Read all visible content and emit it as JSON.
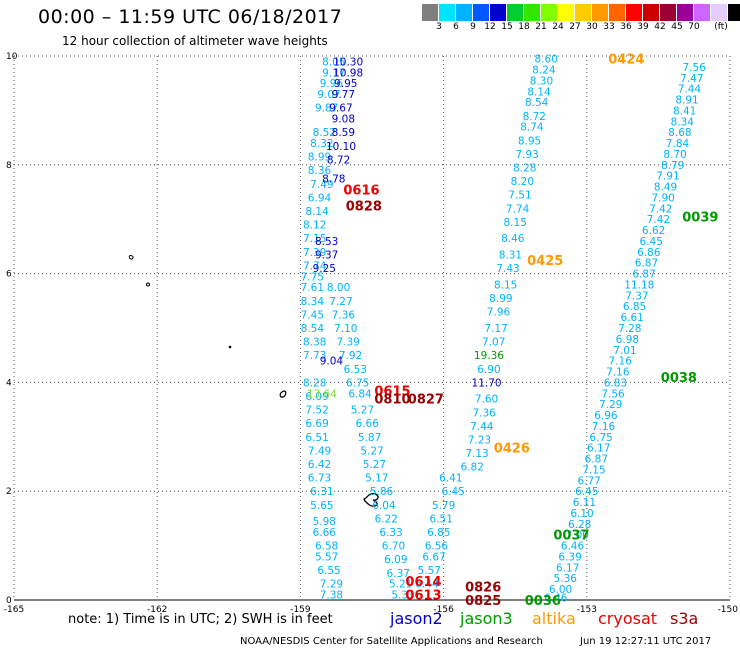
{
  "title": "00:00 – 11:59 UTC 06/18/2017",
  "subtitle": "12 hour collection of altimeter wave heights",
  "colorbar": {
    "colors": [
      "#7f7f7f",
      "#00e5ff",
      "#00b3ff",
      "#0059ff",
      "#0000cc",
      "#00cc33",
      "#33e500",
      "#7fff00",
      "#ffff00",
      "#ffcc00",
      "#ff9900",
      "#ff6600",
      "#ff0000",
      "#cc0000",
      "#990033",
      "#990099",
      "#cc66ff",
      "#e5ccff",
      "#000000"
    ],
    "labels": [
      "3",
      "6",
      "9",
      "12",
      "15",
      "18",
      "21",
      "24",
      "27",
      "30",
      "33",
      "36",
      "39",
      "42",
      "45",
      "70",
      "(ft)"
    ]
  },
  "axes": {
    "x_ticks": [
      "-165",
      "-162",
      "-159",
      "-156",
      "-153",
      "-150"
    ],
    "y_ticks": [
      "0",
      "2",
      "4",
      "6",
      "8",
      "10"
    ]
  },
  "footnote": "note:  1) Time is in UTC;  2) SWH is in feet",
  "satellites": [
    {
      "name": "jason2",
      "color": "#0000cc"
    },
    {
      "name": "jason3",
      "color": "#009900"
    },
    {
      "name": "altika",
      "color": "#ff9900"
    },
    {
      "name": "cryosat",
      "color": "#ee0000"
    },
    {
      "name": "s3a",
      "color": "#990000"
    }
  ],
  "credit": "NOAA/NESDIS Center for Satellite Applications and Research",
  "timestamp": "Jun 19 12:27:11 UTC 2017",
  "time_labels": [
    {
      "text": "0424",
      "color": "#ff9900",
      "lon": -152.55,
      "lat": 9.95
    },
    {
      "text": "0425",
      "color": "#ff9900",
      "lon": -154.25,
      "lat": 6.25
    },
    {
      "text": "0426",
      "color": "#ff9900",
      "lon": -154.95,
      "lat": 2.8
    },
    {
      "text": "0616",
      "color": "#ee0000",
      "lon": -158.1,
      "lat": 7.55
    },
    {
      "text": "0828",
      "color": "#990000",
      "lon": -158.05,
      "lat": 7.25
    },
    {
      "text": "0039",
      "color": "#009900",
      "lon": -151.0,
      "lat": 7.05
    },
    {
      "text": "0038",
      "color": "#009900",
      "lon": -151.45,
      "lat": 4.1
    },
    {
      "text": "0037",
      "color": "#009900",
      "lon": -153.7,
      "lat": 1.2
    },
    {
      "text": "0036",
      "color": "#009900",
      "lon": -154.3,
      "lat": 0.0
    },
    {
      "text": "0615",
      "color": "#ee0000",
      "lon": -157.45,
      "lat": 3.85
    },
    {
      "text": "0810",
      "color": "#990000",
      "lon": -157.45,
      "lat": 3.7
    },
    {
      "text": "0827",
      "color": "#990000",
      "lon": -156.75,
      "lat": 3.7
    },
    {
      "text": "0614",
      "color": "#ee0000",
      "lon": -156.8,
      "lat": 0.35
    },
    {
      "text": "0613",
      "color": "#ee0000",
      "lon": -156.8,
      "lat": 0.1
    },
    {
      "text": "0826",
      "color": "#990000",
      "lon": -155.55,
      "lat": 0.25
    },
    {
      "text": "0825",
      "color": "#990000",
      "lon": -155.55,
      "lat": 0.0
    }
  ],
  "tracks": [
    {
      "satellite": "altika",
      "color": "#00b3ff",
      "points": [
        {
          "lon": -153.85,
          "lat": 9.95,
          "v": "8.60"
        },
        {
          "lon": -153.9,
          "lat": 9.75,
          "v": "8.24"
        },
        {
          "lon": -153.95,
          "lat": 9.55,
          "v": "8.30"
        },
        {
          "lon": -154.0,
          "lat": 9.35,
          "v": "8.14"
        },
        {
          "lon": -154.05,
          "lat": 9.15,
          "v": "8.54"
        },
        {
          "lon": -154.1,
          "lat": 8.9,
          "v": "8.72"
        },
        {
          "lon": -154.15,
          "lat": 8.7,
          "v": "8.74"
        },
        {
          "lon": -154.2,
          "lat": 8.45,
          "v": "8.95"
        },
        {
          "lon": -154.25,
          "lat": 8.2,
          "v": "7.93"
        },
        {
          "lon": -154.3,
          "lat": 7.95,
          "v": "8.28"
        },
        {
          "lon": -154.35,
          "lat": 7.7,
          "v": "8.20"
        },
        {
          "lon": -154.4,
          "lat": 7.45,
          "v": "7.51"
        },
        {
          "lon": -154.45,
          "lat": 7.2,
          "v": "7.74"
        },
        {
          "lon": -154.5,
          "lat": 6.95,
          "v": "8.15"
        },
        {
          "lon": -154.55,
          "lat": 6.65,
          "v": "8.46"
        },
        {
          "lon": -154.6,
          "lat": 6.35,
          "v": "8.31"
        },
        {
          "lon": -154.65,
          "lat": 6.1,
          "v": "7.43"
        },
        {
          "lon": -154.7,
          "lat": 5.8,
          "v": "8.15"
        },
        {
          "lon": -154.8,
          "lat": 5.55,
          "v": "8.99"
        },
        {
          "lon": -154.85,
          "lat": 5.3,
          "v": "7.96"
        },
        {
          "lon": -154.9,
          "lat": 5.0,
          "v": "7.17"
        },
        {
          "lon": -154.95,
          "lat": 4.75,
          "v": "7.07"
        },
        {
          "lon": -155.05,
          "lat": 4.25,
          "v": "6.90"
        },
        {
          "lon": -155.1,
          "lat": 3.7,
          "v": "7.60"
        },
        {
          "lon": -155.15,
          "lat": 3.45,
          "v": "7.36"
        },
        {
          "lon": -155.2,
          "lat": 3.2,
          "v": "7.44"
        },
        {
          "lon": -155.25,
          "lat": 2.95,
          "v": "7.23"
        },
        {
          "lon": -155.3,
          "lat": 2.7,
          "v": "7.13"
        },
        {
          "lon": -155.4,
          "lat": 2.45,
          "v": "6.82"
        }
      ]
    },
    {
      "satellite": "jason3",
      "color": "#00b3ff",
      "points": [
        {
          "lon": -150.75,
          "lat": 9.8,
          "v": "7.56"
        },
        {
          "lon": -150.8,
          "lat": 9.6,
          "v": "7.47"
        },
        {
          "lon": -150.85,
          "lat": 9.4,
          "v": "7.44"
        },
        {
          "lon": -150.9,
          "lat": 9.2,
          "v": "8.91"
        },
        {
          "lon": -150.95,
          "lat": 9.0,
          "v": "8.41"
        },
        {
          "lon": -151.0,
          "lat": 8.8,
          "v": "8.34"
        },
        {
          "lon": -151.05,
          "lat": 8.6,
          "v": "8.68"
        },
        {
          "lon": -151.1,
          "lat": 8.4,
          "v": "7.84"
        },
        {
          "lon": -151.15,
          "lat": 8.2,
          "v": "8.70"
        },
        {
          "lon": -151.2,
          "lat": 8.0,
          "v": "8.79"
        },
        {
          "lon": -151.3,
          "lat": 7.8,
          "v": "7.91"
        },
        {
          "lon": -151.35,
          "lat": 7.6,
          "v": "8.49"
        },
        {
          "lon": -151.4,
          "lat": 7.4,
          "v": "7.90"
        },
        {
          "lon": -151.45,
          "lat": 7.2,
          "v": "7.42"
        },
        {
          "lon": -151.5,
          "lat": 7.0,
          "v": "7.42"
        },
        {
          "lon": -151.6,
          "lat": 6.8,
          "v": "6.62"
        },
        {
          "lon": -151.65,
          "lat": 6.6,
          "v": "6.45"
        },
        {
          "lon": -151.7,
          "lat": 6.4,
          "v": "6.86"
        },
        {
          "lon": -151.75,
          "lat": 6.2,
          "v": "6.87"
        },
        {
          "lon": -151.8,
          "lat": 6.0,
          "v": "6.87"
        },
        {
          "lon": -151.9,
          "lat": 5.8,
          "v": "11.18"
        },
        {
          "lon": -151.95,
          "lat": 5.6,
          "v": "7.37"
        },
        {
          "lon": -152.0,
          "lat": 5.4,
          "v": "6.85"
        },
        {
          "lon": -152.05,
          "lat": 5.2,
          "v": "6.61"
        },
        {
          "lon": -152.1,
          "lat": 5.0,
          "v": "7.28"
        },
        {
          "lon": -152.15,
          "lat": 4.8,
          "v": "6.98"
        },
        {
          "lon": -152.2,
          "lat": 4.6,
          "v": "7.01"
        },
        {
          "lon": -152.3,
          "lat": 4.4,
          "v": "7.16"
        },
        {
          "lon": -152.35,
          "lat": 4.2,
          "v": "7.16"
        },
        {
          "lon": -152.4,
          "lat": 4.0,
          "v": "6.83"
        },
        {
          "lon": -152.45,
          "lat": 3.8,
          "v": "7.56"
        },
        {
          "lon": -152.5,
          "lat": 3.6,
          "v": "7.29"
        },
        {
          "lon": -152.6,
          "lat": 3.4,
          "v": "6.96"
        },
        {
          "lon": -152.65,
          "lat": 3.2,
          "v": "7.16"
        },
        {
          "lon": -152.7,
          "lat": 3.0,
          "v": "6.75"
        },
        {
          "lon": -152.75,
          "lat": 2.8,
          "v": "6.17"
        },
        {
          "lon": -152.8,
          "lat": 2.6,
          "v": "6.87"
        },
        {
          "lon": -152.85,
          "lat": 2.4,
          "v": "7.15"
        },
        {
          "lon": -152.95,
          "lat": 2.2,
          "v": "6.77"
        },
        {
          "lon": -153.0,
          "lat": 2.0,
          "v": "6.45"
        },
        {
          "lon": -153.05,
          "lat": 1.8,
          "v": "6.11"
        },
        {
          "lon": -153.1,
          "lat": 1.6,
          "v": "6.10"
        },
        {
          "lon": -153.15,
          "lat": 1.4,
          "v": "6.28"
        },
        {
          "lon": -153.2,
          "lat": 1.2,
          "v": "7.00"
        },
        {
          "lon": -153.3,
          "lat": 1.0,
          "v": "6.46"
        },
        {
          "lon": -153.35,
          "lat": 0.8,
          "v": "6.39"
        },
        {
          "lon": -153.4,
          "lat": 0.6,
          "v": "6.17"
        },
        {
          "lon": -153.45,
          "lat": 0.4,
          "v": "5.36"
        },
        {
          "lon": -153.55,
          "lat": 0.2,
          "v": "6.00"
        },
        {
          "lon": -153.65,
          "lat": 0.05,
          "v": "6.46"
        }
      ]
    },
    {
      "satellite": "cryosat",
      "color": "#00b3ff",
      "points": [
        {
          "lon": -158.3,
          "lat": 9.9,
          "v": "8.05"
        },
        {
          "lon": -158.3,
          "lat": 9.7,
          "v": "9.17"
        },
        {
          "lon": -158.35,
          "lat": 9.5,
          "v": "9.96"
        },
        {
          "lon": -158.4,
          "lat": 9.3,
          "v": "9.07"
        },
        {
          "lon": -158.45,
          "lat": 9.05,
          "v": "9.87"
        },
        {
          "lon": -158.5,
          "lat": 8.6,
          "v": "8.52"
        },
        {
          "lon": -158.55,
          "lat": 8.4,
          "v": "8.32"
        },
        {
          "lon": -158.6,
          "lat": 8.15,
          "v": "8.99"
        },
        {
          "lon": -158.6,
          "lat": 7.9,
          "v": "8.36"
        },
        {
          "lon": -158.55,
          "lat": 7.65,
          "v": "7.49"
        },
        {
          "lon": -158.6,
          "lat": 7.4,
          "v": "6.94"
        },
        {
          "lon": -158.65,
          "lat": 7.15,
          "v": "8.14"
        },
        {
          "lon": -158.7,
          "lat": 6.9,
          "v": "8.12"
        },
        {
          "lon": -158.7,
          "lat": 6.65,
          "v": "7.15"
        },
        {
          "lon": -158.7,
          "lat": 6.4,
          "v": "7.39"
        },
        {
          "lon": -158.7,
          "lat": 6.15,
          "v": "7.74"
        },
        {
          "lon": -158.75,
          "lat": 5.95,
          "v": "7.75"
        },
        {
          "lon": -158.75,
          "lat": 5.75,
          "v": "7.61"
        },
        {
          "lon": -158.75,
          "lat": 5.5,
          "v": "8.34"
        },
        {
          "lon": -158.75,
          "lat": 5.25,
          "v": "7.45"
        },
        {
          "lon": -158.75,
          "lat": 5.0,
          "v": "8.54"
        },
        {
          "lon": -158.7,
          "lat": 4.75,
          "v": "8.38"
        },
        {
          "lon": -158.7,
          "lat": 4.5,
          "v": "7.73"
        },
        {
          "lon": -158.7,
          "lat": 4.0,
          "v": "8.28"
        },
        {
          "lon": -158.65,
          "lat": 3.75,
          "v": "6.09"
        },
        {
          "lon": -158.65,
          "lat": 3.5,
          "v": "7.52"
        },
        {
          "lon": -158.65,
          "lat": 3.25,
          "v": "6.69"
        },
        {
          "lon": -158.65,
          "lat": 3.0,
          "v": "6.51"
        },
        {
          "lon": -158.6,
          "lat": 2.75,
          "v": "7.49"
        },
        {
          "lon": -158.6,
          "lat": 2.5,
          "v": "6.42"
        },
        {
          "lon": -158.6,
          "lat": 2.25,
          "v": "6.73"
        },
        {
          "lon": -158.55,
          "lat": 2.0,
          "v": "6.31"
        },
        {
          "lon": -158.55,
          "lat": 1.75,
          "v": "5.65"
        },
        {
          "lon": -158.5,
          "lat": 1.45,
          "v": "5.98"
        },
        {
          "lon": -158.5,
          "lat": 1.25,
          "v": "6.66"
        },
        {
          "lon": -158.45,
          "lat": 1.0,
          "v": "6.58"
        },
        {
          "lon": -158.45,
          "lat": 0.8,
          "v": "5.57"
        },
        {
          "lon": -158.4,
          "lat": 0.55,
          "v": "6.55"
        },
        {
          "lon": -158.35,
          "lat": 0.3,
          "v": "7.29"
        },
        {
          "lon": -158.35,
          "lat": 0.1,
          "v": "7.38"
        }
      ]
    },
    {
      "satellite": "s3a",
      "color": "#00b3ff",
      "points": [
        {
          "lon": -158.2,
          "lat": 5.75,
          "v": "8.00"
        },
        {
          "lon": -158.15,
          "lat": 5.5,
          "v": "7.27"
        },
        {
          "lon": -158.1,
          "lat": 5.25,
          "v": "7.36"
        },
        {
          "lon": -158.05,
          "lat": 5.0,
          "v": "7.10"
        },
        {
          "lon": -158.0,
          "lat": 4.75,
          "v": "7.39"
        },
        {
          "lon": -157.95,
          "lat": 4.5,
          "v": "7.92"
        },
        {
          "lon": -157.85,
          "lat": 4.25,
          "v": "6.53"
        },
        {
          "lon": -157.8,
          "lat": 4.0,
          "v": "6.75"
        },
        {
          "lon": -157.75,
          "lat": 3.8,
          "v": "6.84"
        },
        {
          "lon": -157.7,
          "lat": 3.5,
          "v": "5.27"
        },
        {
          "lon": -157.6,
          "lat": 3.25,
          "v": "6.66"
        },
        {
          "lon": -157.55,
          "lat": 3.0,
          "v": "5.87"
        },
        {
          "lon": -157.5,
          "lat": 2.75,
          "v": "5.27"
        },
        {
          "lon": -157.45,
          "lat": 2.5,
          "v": "5.27"
        },
        {
          "lon": -157.4,
          "lat": 2.25,
          "v": "5.17"
        },
        {
          "lon": -157.3,
          "lat": 2.0,
          "v": "5.86"
        },
        {
          "lon": -157.25,
          "lat": 1.75,
          "v": "6.04"
        },
        {
          "lon": -157.2,
          "lat": 1.5,
          "v": "6.22"
        },
        {
          "lon": -157.1,
          "lat": 1.25,
          "v": "6.33"
        },
        {
          "lon": -157.05,
          "lat": 1.0,
          "v": "6.70"
        },
        {
          "lon": -157.0,
          "lat": 0.75,
          "v": "6.09"
        },
        {
          "lon": -156.95,
          "lat": 0.5,
          "v": "6.37"
        },
        {
          "lon": -156.9,
          "lat": 0.3,
          "v": "5.21"
        },
        {
          "lon": -156.85,
          "lat": 0.1,
          "v": "5.33"
        }
      ]
    },
    {
      "satellite": "s3a-b",
      "color": "#00b3ff",
      "points": [
        {
          "lon": -156.0,
          "lat": 1.75,
          "v": "5.79"
        },
        {
          "lon": -156.05,
          "lat": 1.5,
          "v": "6.51"
        },
        {
          "lon": -156.1,
          "lat": 1.25,
          "v": "6.85"
        },
        {
          "lon": -156.15,
          "lat": 1.0,
          "v": "6.56"
        },
        {
          "lon": -156.2,
          "lat": 0.8,
          "v": "6.67"
        },
        {
          "lon": -156.3,
          "lat": 0.55,
          "v": "5.57"
        },
        {
          "lon": -156.35,
          "lat": 0.3,
          "v": "6.44"
        },
        {
          "lon": -155.85,
          "lat": 2.25,
          "v": "6.41"
        },
        {
          "lon": -155.8,
          "lat": 2.0,
          "v": "6.45"
        }
      ]
    },
    {
      "satellite": "jason2",
      "color": "#0000cc",
      "points": [
        {
          "lon": -158.0,
          "lat": 9.9,
          "v": "10.30"
        },
        {
          "lon": -158.0,
          "lat": 9.7,
          "v": "10.98"
        },
        {
          "lon": -158.05,
          "lat": 9.5,
          "v": "9.95"
        },
        {
          "lon": -158.1,
          "lat": 9.3,
          "v": "9.77"
        },
        {
          "lon": -158.15,
          "lat": 9.05,
          "v": "9.67"
        },
        {
          "lon": -158.1,
          "lat": 8.85,
          "v": "9.08"
        },
        {
          "lon": -158.1,
          "lat": 8.6,
          "v": "8.59"
        },
        {
          "lon": -158.15,
          "lat": 8.35,
          "v": "10.10"
        },
        {
          "lon": -158.2,
          "lat": 8.1,
          "v": "8.72"
        },
        {
          "lon": -158.3,
          "lat": 7.75,
          "v": "8.78"
        },
        {
          "lon": -158.45,
          "lat": 6.6,
          "v": "8.53"
        },
        {
          "lon": -158.45,
          "lat": 6.35,
          "v": "9.37"
        },
        {
          "lon": -158.5,
          "lat": 6.1,
          "v": "9.25"
        },
        {
          "lon": -158.35,
          "lat": 4.4,
          "v": "9.04"
        },
        {
          "lon": -155.1,
          "lat": 4.0,
          "v": "11.70"
        }
      ]
    },
    {
      "satellite": "jason3-g",
      "color": "#009900",
      "points": [
        {
          "lon": -155.05,
          "lat": 4.5,
          "v": "19.36"
        }
      ]
    },
    {
      "satellite": "altika-g",
      "color": "#7fd633",
      "points": [
        {
          "lon": -158.55,
          "lat": 3.8,
          "v": "13.64"
        }
      ]
    }
  ]
}
